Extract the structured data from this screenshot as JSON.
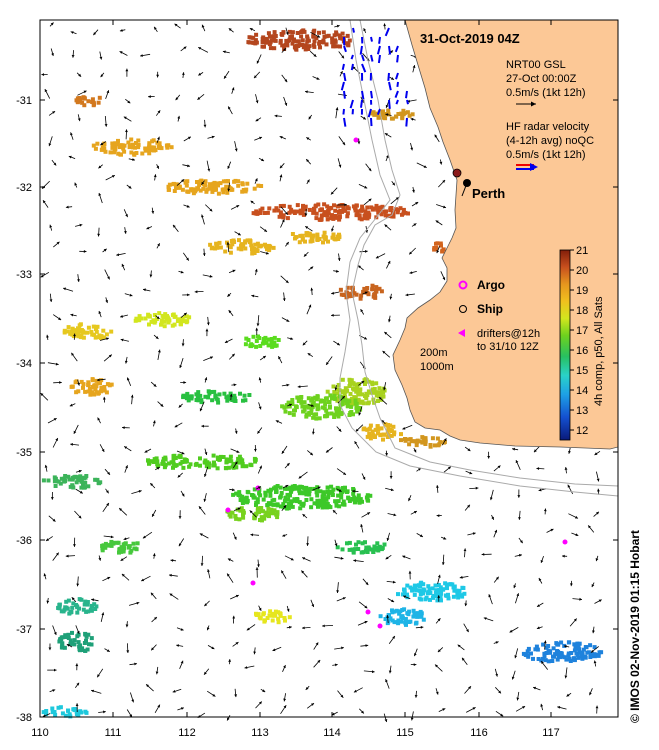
{
  "title": "31-Oct-2019 04Z",
  "legend_model": {
    "line1": "NRT00 GSL",
    "line2": "27-Oct 00:00Z",
    "line3": "0.5m/s (1kt 12h)"
  },
  "legend_radar": {
    "line1": "HF radar velocity",
    "line2": "(4-12h avg) noQC",
    "line3": "0.5m/s (1kt 12h)"
  },
  "city": "Perth",
  "markers": {
    "argo": "Argo",
    "ship": "Ship",
    "drifters_line1": "drifters@12h",
    "drifters_line2": "to 31/10 12Z"
  },
  "isobaths": {
    "a": "200m",
    "b": "1000m"
  },
  "colorbar": {
    "label": "4h comp, p50, All Sats",
    "min": 11.5,
    "max": 21,
    "ticks": [
      "12",
      "13",
      "14",
      "15",
      "16",
      "17",
      "18",
      "19",
      "20",
      "21"
    ]
  },
  "axes": {
    "x_ticks": [
      "110",
      "111",
      "112",
      "113",
      "114",
      "115",
      "116",
      "117"
    ],
    "y_ticks": [
      "-31",
      "-32",
      "-33",
      "-34",
      "-35",
      "-36",
      "-37",
      "-38"
    ]
  },
  "credit": "© IMOS 02-Nov-2019 01:15 Hobart",
  "colors": {
    "land": "#fcc896",
    "argo": "#ff00ff",
    "radar": "#0000ee"
  }
}
